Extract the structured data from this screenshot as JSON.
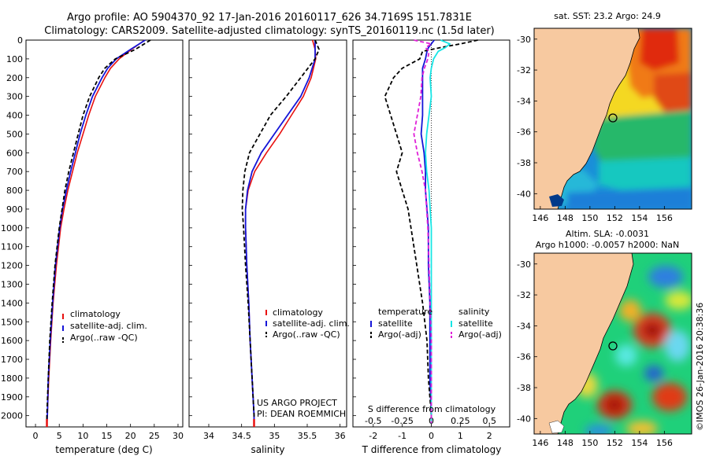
{
  "title": {
    "line1": "Argo profile: AO 5904370_92 17-Jan-2016 20160117_626 34.7169S 151.7831E",
    "line2": "Climatology: CARS2009. Satellite-adjusted climatology: synTS_20160119.nc (1.5d later)"
  },
  "depth_axis": {
    "ticks": [
      0,
      100,
      200,
      300,
      400,
      500,
      600,
      700,
      800,
      900,
      1000,
      1100,
      1200,
      1300,
      1400,
      1500,
      1600,
      1700,
      1800,
      1900,
      2000
    ],
    "range": [
      0,
      2060
    ]
  },
  "credits": {
    "project": "US ARGO PROJECT",
    "pi": "PI: DEAN ROEMMICH"
  },
  "side_stamp": "©IMOS 26-Jan-2016 20:38:36",
  "colors": {
    "climatology": "#e8100f",
    "satellite": "#1515d8",
    "argo": "#000000",
    "cyan": "#16e5e5",
    "magenta": "#e020d8",
    "land": "#f7c9a0"
  },
  "chart_data": [
    {
      "type": "line",
      "panel": "temperature",
      "xlabel": "temperature (deg C)",
      "xlim": [
        -2,
        31
      ],
      "xticks": [
        0,
        5,
        10,
        15,
        20,
        25,
        30
      ],
      "legend": [
        "climatology",
        "satellite-adj. clim.",
        "Argo(..raw -QC)"
      ],
      "depth": [
        0,
        50,
        100,
        150,
        200,
        300,
        400,
        500,
        600,
        700,
        800,
        900,
        1000,
        1200,
        1400,
        1600,
        1800,
        2000,
        2040
      ],
      "series": [
        {
          "name": "climatology",
          "values": [
            23.0,
            20.2,
            17.6,
            15.8,
            14.6,
            12.6,
            11.2,
            10.0,
            8.8,
            7.8,
            6.8,
            6.0,
            5.3,
            4.4,
            3.7,
            3.2,
            2.8,
            2.5,
            2.4
          ]
        },
        {
          "name": "satellite-adj. clim.",
          "values": [
            23.1,
            20.0,
            17.0,
            15.2,
            14.0,
            12.0,
            10.6,
            9.4,
            8.4,
            7.4,
            6.5,
            5.7,
            5.1,
            4.2,
            3.6,
            3.1,
            2.7,
            2.5,
            2.4
          ]
        },
        {
          "name": "Argo(..raw -QC)",
          "values": [
            24.2,
            21.0,
            16.8,
            14.6,
            13.3,
            11.4,
            10.0,
            9.0,
            8.0,
            7.0,
            6.2,
            5.6,
            5.0,
            4.1,
            3.5,
            3.0,
            2.7,
            2.4,
            2.4
          ]
        }
      ]
    },
    {
      "type": "line",
      "panel": "salinity",
      "xlabel": "salinity",
      "xlim": [
        33.7,
        36.1
      ],
      "xticks": [
        34,
        34.5,
        35,
        35.5,
        36
      ],
      "legend": [
        "climatology",
        "satellite-adj. clim.",
        "Argo(..raw -QC)"
      ],
      "depth": [
        0,
        50,
        100,
        200,
        300,
        400,
        500,
        600,
        700,
        800,
        900,
        1000,
        1200,
        1400,
        1600,
        1800,
        2000,
        2040
      ],
      "series": [
        {
          "name": "climatology",
          "values": [
            35.58,
            35.62,
            35.63,
            35.56,
            35.44,
            35.26,
            35.08,
            34.88,
            34.7,
            34.6,
            34.56,
            34.56,
            34.58,
            34.61,
            34.63,
            34.66,
            34.69,
            34.69
          ]
        },
        {
          "name": "satellite-adj. clim.",
          "values": [
            35.62,
            35.62,
            35.62,
            35.53,
            35.4,
            35.2,
            35.0,
            34.8,
            34.66,
            34.59,
            34.56,
            34.56,
            34.58,
            34.61,
            34.63,
            34.66,
            34.69,
            34.69
          ]
        },
        {
          "name": "Argo(..raw -QC)",
          "values": [
            35.62,
            35.68,
            35.62,
            35.4,
            35.18,
            34.94,
            34.78,
            34.62,
            34.55,
            34.52,
            34.51,
            34.53,
            34.56,
            34.6,
            34.63,
            34.66,
            34.69,
            34.69
          ]
        }
      ]
    },
    {
      "type": "line",
      "panel": "difference",
      "xlabel": "T difference from climatology",
      "top_label": "S difference from climatology",
      "xlim": [
        -2.7,
        2.7
      ],
      "xticks": [
        -2,
        -1,
        0,
        1,
        2
      ],
      "top_ticks": [
        "-0.5",
        "-0.25",
        "0",
        "0.25",
        "0.5"
      ],
      "legend_groups": [
        "temperature",
        "salinity"
      ],
      "legend": [
        "satellite",
        "Argo(-adj)",
        "satellite",
        "Argo(-adj)"
      ],
      "depth": [
        0,
        20,
        40,
        60,
        100,
        150,
        200,
        300,
        400,
        500,
        600,
        700,
        800,
        900,
        1000,
        1200,
        1400,
        1600,
        1800,
        2000,
        2040
      ],
      "series": [
        {
          "name": "temperature satellite",
          "values": [
            0.1,
            0.0,
            -0.1,
            -0.15,
            -0.2,
            -0.3,
            -0.3,
            -0.3,
            -0.3,
            -0.35,
            -0.25,
            -0.2,
            -0.2,
            -0.15,
            -0.1,
            -0.1,
            -0.05,
            -0.05,
            -0.05,
            0.0,
            0.0
          ]
        },
        {
          "name": "temperature Argo(-adj)",
          "values": [
            1.6,
            1.0,
            0.3,
            -0.3,
            -0.4,
            -1.0,
            -1.3,
            -1.6,
            -1.4,
            -1.2,
            -1.0,
            -1.2,
            -1.0,
            -0.8,
            -0.7,
            -0.5,
            -0.3,
            -0.15,
            -0.1,
            0.0,
            0.0
          ]
        },
        {
          "name": "salinity satellite",
          "values": [
            0.08,
            0.16,
            0.12,
            0.06,
            0.02,
            0.0,
            -0.01,
            0.0,
            -0.02,
            -0.04,
            -0.05,
            -0.04,
            -0.02,
            -0.01,
            0.0,
            0.0,
            0.0,
            0.0,
            0.0,
            0.0,
            0.0
          ]
        },
        {
          "name": "salinity Argo(-adj)",
          "values": [
            -0.15,
            0.0,
            -0.05,
            -0.02,
            -0.03,
            -0.06,
            -0.08,
            -0.09,
            -0.12,
            -0.15,
            -0.12,
            -0.08,
            -0.05,
            -0.04,
            -0.03,
            -0.02,
            -0.01,
            0.0,
            0.0,
            0.0,
            0.0
          ]
        }
      ]
    },
    {
      "type": "heatmap",
      "panel": "sst_map",
      "title": "sat. SST: 23.2 Argo: 24.9",
      "xticks": [
        146,
        148,
        150,
        152,
        154,
        156
      ],
      "yticks": [
        -30,
        -32,
        -34,
        -36,
        -38,
        -40
      ],
      "xlim": [
        145.5,
        158.2
      ],
      "ylim": [
        -41,
        -29.3
      ],
      "float_position": [
        151.78,
        -34.72
      ]
    },
    {
      "type": "heatmap",
      "panel": "sla_map",
      "title_line1": "Altim. SLA: -0.0031",
      "title_line2": "Argo h1000: -0.0057 h2000: NaN",
      "xticks": [
        146,
        148,
        150,
        152,
        154,
        156
      ],
      "yticks": [
        -30,
        -32,
        -34,
        -36,
        -38,
        -40
      ],
      "xlim": [
        145.5,
        158.2
      ],
      "ylim": [
        -41,
        -29.3
      ],
      "float_position": [
        151.78,
        -34.72
      ]
    }
  ]
}
